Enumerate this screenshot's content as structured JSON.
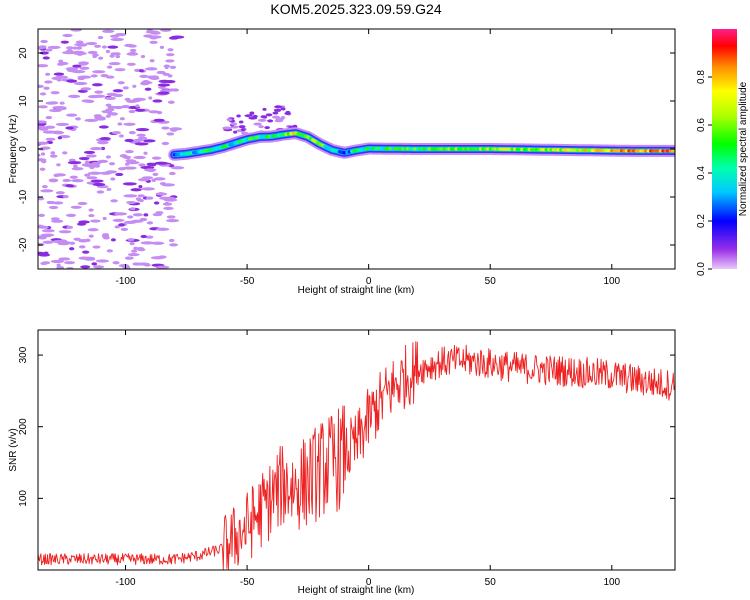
{
  "title": "KOM5.2025.323.09.59.G24",
  "colors": {
    "snr_line": "#ee2222",
    "scatter_light": "#c58cf2",
    "scatter_dark": "#8a2be2"
  },
  "chart_data": [
    {
      "type": "heatmap",
      "xlabel": "Height of straight line (km)",
      "ylabel": "Frequency (Hz)",
      "xlim": [
        -136,
        126
      ],
      "ylim": [
        -25,
        25
      ],
      "xticks": [
        -100,
        -50,
        0,
        50,
        100
      ],
      "yticks": [
        -20,
        -10,
        0,
        10,
        20
      ],
      "colorbar": {
        "label": "Normalized spectral amplitude",
        "range": [
          0,
          1
        ],
        "ticks": [
          0.0,
          0.2,
          0.4,
          0.6,
          0.8
        ]
      },
      "ridge": {
        "x": [
          -80,
          -75,
          -70,
          -65,
          -60,
          -55,
          -50,
          -45,
          -40,
          -35,
          -30,
          -25,
          -20,
          -15,
          -10,
          -5,
          0,
          20,
          50,
          80,
          110,
          126
        ],
        "freq": [
          -1.2,
          -1.0,
          -0.6,
          -0.2,
          0.4,
          1.2,
          2.0,
          2.5,
          2.6,
          3.0,
          3.3,
          2.5,
          1.0,
          -0.2,
          -0.8,
          -0.3,
          0.1,
          0.0,
          0.0,
          -0.2,
          -0.4,
          -0.4
        ],
        "amplitude": [
          0.2,
          0.3,
          0.4,
          0.45,
          0.45,
          0.4,
          0.45,
          0.5,
          0.45,
          0.5,
          0.7,
          0.55,
          0.6,
          0.35,
          0.2,
          0.4,
          0.45,
          0.5,
          0.6,
          0.65,
          0.8,
          0.9
        ]
      },
      "note": "scattered low-amplitude noise between -136 and -80 km across all frequencies"
    },
    {
      "type": "line",
      "xlabel": "Height of straight line (km)",
      "ylabel": "SNR (v/v)",
      "xlim": [
        -136,
        126
      ],
      "ylim": [
        0,
        335
      ],
      "xticks": [
        -100,
        -50,
        0,
        50,
        100
      ],
      "yticks": [
        100,
        200,
        300
      ],
      "series": [
        {
          "name": "SNR",
          "x": [
            -136,
            -120,
            -100,
            -80,
            -70,
            -60,
            -50,
            -45,
            -40,
            -35,
            -30,
            -25,
            -20,
            -15,
            -10,
            -5,
            0,
            5,
            10,
            15,
            20,
            25,
            30,
            35,
            40,
            50,
            60,
            70,
            80,
            90,
            100,
            110,
            120,
            126
          ],
          "values": [
            15,
            15,
            15,
            15,
            20,
            30,
            60,
            80,
            100,
            120,
            115,
            125,
            140,
            150,
            160,
            175,
            210,
            235,
            255,
            270,
            280,
            285,
            290,
            292,
            292,
            288,
            283,
            280,
            278,
            275,
            272,
            265,
            260,
            258
          ]
        }
      ]
    }
  ]
}
